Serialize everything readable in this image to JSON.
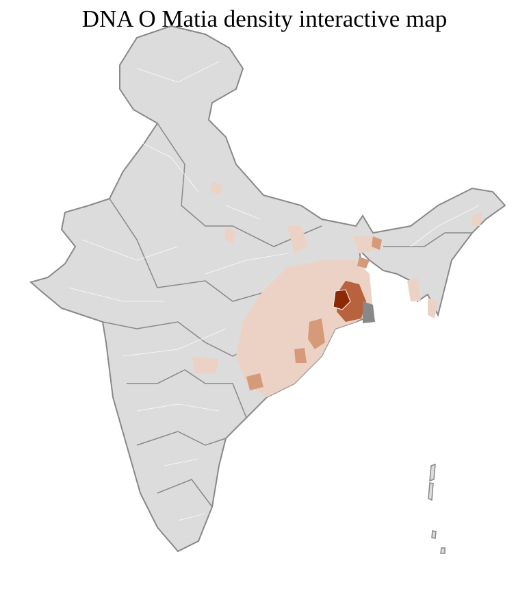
{
  "title": "DNA O Matia density interactive map",
  "colors": {
    "base": "#dcdcdc",
    "border": "#ffffff",
    "state_border": "#888888",
    "low": "#ecd2c4",
    "mid": "#d49a7a",
    "high": "#b8623e",
    "max": "#8b2a05"
  }
}
